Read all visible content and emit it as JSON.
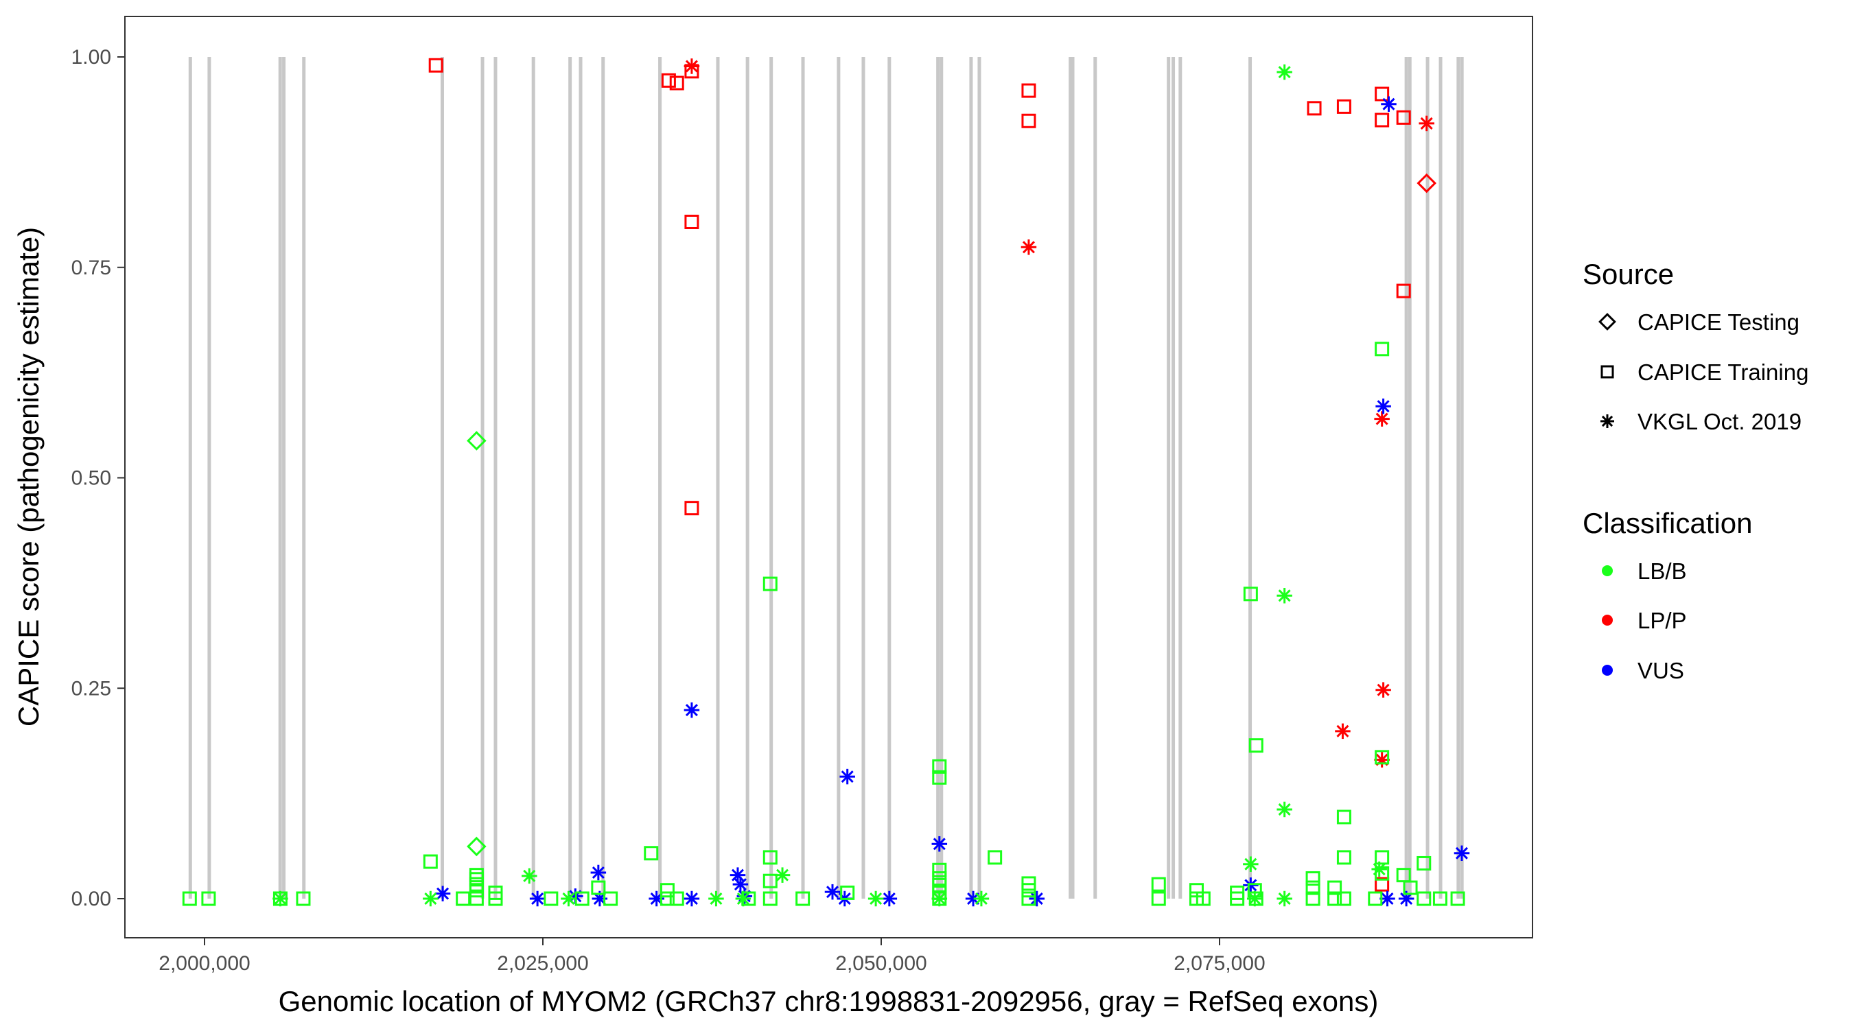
{
  "chart_data": {
    "type": "scatter",
    "title": "",
    "xlabel": "Genomic location of MYOM2 (GRCh37 chr8:1998831-2092956, gray = RefSeq exons)",
    "ylabel": "CAPICE score (pathogenicity estimate)",
    "xlim": [
      1994000,
      2095500
    ],
    "ylim": [
      -0.045,
      1.045
    ],
    "x_ticks": [
      2000000,
      2025000,
      2050000,
      2075000
    ],
    "x_tick_labels": [
      "2,000,000",
      "2,025,000",
      "2,050,000",
      "2,075,000"
    ],
    "y_ticks": [
      0,
      0.25,
      0.5,
      0.75,
      1.0
    ],
    "y_tick_labels": [
      "0.00",
      "0.25",
      "0.50",
      "0.75",
      "1.00"
    ],
    "grid": false,
    "exons": [
      1998950,
      2000350,
      2005590,
      2005860,
      2007340,
      2017570,
      2020540,
      2021500,
      2024300,
      2027010,
      2027790,
      2029450,
      2033650,
      2037930,
      2040120,
      2041870,
      2044220,
      2046850,
      2048680,
      2050600,
      2054190,
      2054450,
      2056640,
      2057250,
      2063980,
      2064150,
      2065810,
      2071230,
      2071580,
      2072100,
      2077260,
      2088800,
      2089060,
      2090370,
      2091330,
      2092640,
      2092910
    ],
    "exon_color": "#c8c8c8",
    "legend": {
      "placement": "right",
      "source_title": "Source",
      "source_items": [
        {
          "label": "CAPICE Testing",
          "shape": "diamond"
        },
        {
          "label": "CAPICE Training",
          "shape": "square"
        },
        {
          "label": "VKGL Oct. 2019",
          "shape": "asterisk"
        }
      ],
      "class_title": "Classification",
      "class_items": [
        {
          "label": "LB/B",
          "color": "#1aff1a"
        },
        {
          "label": "LP/P",
          "color": "#ff0000"
        },
        {
          "label": "VUS",
          "color": "#0000ff"
        }
      ]
    },
    "series": [
      {
        "source": "CAPICE Training",
        "classification": "LP/P",
        "points": [
          [
            2017100,
            0.99
          ],
          [
            2034300,
            0.972
          ],
          [
            2034900,
            0.969
          ],
          [
            2036000,
            0.983
          ],
          [
            2036000,
            0.804
          ],
          [
            2036000,
            0.464
          ],
          [
            2060900,
            0.96
          ],
          [
            2060900,
            0.924
          ],
          [
            2082000,
            0.939
          ],
          [
            2084200,
            0.941
          ],
          [
            2087000,
            0.956
          ],
          [
            2087000,
            0.925
          ],
          [
            2088600,
            0.928
          ],
          [
            2088600,
            0.722
          ],
          [
            2087000,
            0.017
          ]
        ]
      },
      {
        "source": "VKGL Oct. 2019",
        "classification": "LP/P",
        "points": [
          [
            2036000,
            0.989
          ],
          [
            2060900,
            0.774
          ],
          [
            2090300,
            0.921
          ],
          [
            2087000,
            0.57
          ],
          [
            2087100,
            0.248
          ],
          [
            2084100,
            0.199
          ],
          [
            2087000,
            0.165
          ]
        ]
      },
      {
        "source": "CAPICE Testing",
        "classification": "LP/P",
        "points": [
          [
            2090300,
            0.85
          ]
        ]
      },
      {
        "source": "VKGL Oct. 2019",
        "classification": "VUS",
        "points": [
          [
            2087500,
            0.944
          ],
          [
            2087100,
            0.585
          ],
          [
            2036000,
            0.224
          ],
          [
            2047500,
            0.145
          ],
          [
            2054300,
            0.065
          ],
          [
            2092900,
            0.054
          ],
          [
            2029100,
            0.031
          ],
          [
            2039400,
            0.028
          ],
          [
            2039600,
            0.017
          ],
          [
            2077300,
            0.016
          ],
          [
            2017600,
            0.006
          ],
          [
            2027400,
            0.003
          ],
          [
            2024600,
            0
          ],
          [
            2029200,
            0
          ],
          [
            2033400,
            0
          ],
          [
            2036000,
            0
          ],
          [
            2039900,
            0.003
          ],
          [
            2046400,
            0.008
          ],
          [
            2047300,
            0
          ],
          [
            2050600,
            0
          ],
          [
            2056800,
            0
          ],
          [
            2061500,
            0
          ],
          [
            2087400,
            0
          ],
          [
            2088800,
            0
          ]
        ]
      },
      {
        "source": "CAPICE Testing",
        "classification": "LB/B",
        "points": [
          [
            2020100,
            0.544
          ],
          [
            2020100,
            0.062
          ]
        ]
      },
      {
        "source": "VKGL Oct. 2019",
        "classification": "LB/B",
        "points": [
          [
            2079800,
            0.982
          ],
          [
            2079800,
            0.36
          ],
          [
            2079800,
            0.106
          ],
          [
            2024000,
            0.027
          ],
          [
            2042700,
            0.028
          ],
          [
            2077300,
            0.041
          ],
          [
            2086800,
            0.035
          ],
          [
            2005600,
            0
          ],
          [
            2016700,
            0
          ],
          [
            2026900,
            0
          ],
          [
            2037800,
            0
          ],
          [
            2039800,
            0
          ],
          [
            2049600,
            0
          ],
          [
            2054300,
            0
          ],
          [
            2057400,
            0
          ],
          [
            2077600,
            0
          ],
          [
            2079800,
            0
          ]
        ]
      },
      {
        "source": "CAPICE Training",
        "classification": "LB/B",
        "points": [
          [
            1998900,
            0
          ],
          [
            2000300,
            0
          ],
          [
            2005600,
            0
          ],
          [
            2007300,
            0
          ],
          [
            2016700,
            0.044
          ],
          [
            2019100,
            0
          ],
          [
            2020100,
            0.028
          ],
          [
            2020100,
            0.023
          ],
          [
            2020100,
            0.017
          ],
          [
            2020100,
            0.01
          ],
          [
            2020100,
            0
          ],
          [
            2021500,
            0.007
          ],
          [
            2021500,
            0
          ],
          [
            2025600,
            0
          ],
          [
            2027900,
            0
          ],
          [
            2029100,
            0.013
          ],
          [
            2030000,
            0
          ],
          [
            2033000,
            0.054
          ],
          [
            2034200,
            0.01
          ],
          [
            2034200,
            0
          ],
          [
            2034900,
            0
          ],
          [
            2040200,
            0
          ],
          [
            2041800,
            0.374
          ],
          [
            2041800,
            0.049
          ],
          [
            2041800,
            0.021
          ],
          [
            2041800,
            0
          ],
          [
            2044200,
            0
          ],
          [
            2047500,
            0.007
          ],
          [
            2054300,
            0.157
          ],
          [
            2054300,
            0.144
          ],
          [
            2054300,
            0.034
          ],
          [
            2054300,
            0.024
          ],
          [
            2054300,
            0.016
          ],
          [
            2054300,
            0.007
          ],
          [
            2054300,
            0
          ],
          [
            2058400,
            0.049
          ],
          [
            2060900,
            0.018
          ],
          [
            2060900,
            0.01
          ],
          [
            2060900,
            0
          ],
          [
            2070500,
            0.017
          ],
          [
            2070500,
            0
          ],
          [
            2073300,
            0.01
          ],
          [
            2073300,
            0
          ],
          [
            2073800,
            0
          ],
          [
            2076300,
            0.007
          ],
          [
            2076300,
            0
          ],
          [
            2077300,
            0.362
          ],
          [
            2077700,
            0.182
          ],
          [
            2077600,
            0.01
          ],
          [
            2077700,
            0
          ],
          [
            2081900,
            0.024
          ],
          [
            2081900,
            0.013
          ],
          [
            2081900,
            0
          ],
          [
            2083500,
            0.013
          ],
          [
            2083500,
            0
          ],
          [
            2084200,
            0.097
          ],
          [
            2084200,
            0.049
          ],
          [
            2084200,
            0
          ],
          [
            2087000,
            0.653
          ],
          [
            2087000,
            0.168
          ],
          [
            2087000,
            0.049
          ],
          [
            2087000,
            0.03
          ],
          [
            2086500,
            0
          ],
          [
            2088600,
            0.028
          ],
          [
            2089100,
            0.013
          ],
          [
            2090100,
            0.042
          ],
          [
            2090100,
            0
          ],
          [
            2091300,
            0
          ],
          [
            2092600,
            0
          ]
        ]
      }
    ]
  }
}
